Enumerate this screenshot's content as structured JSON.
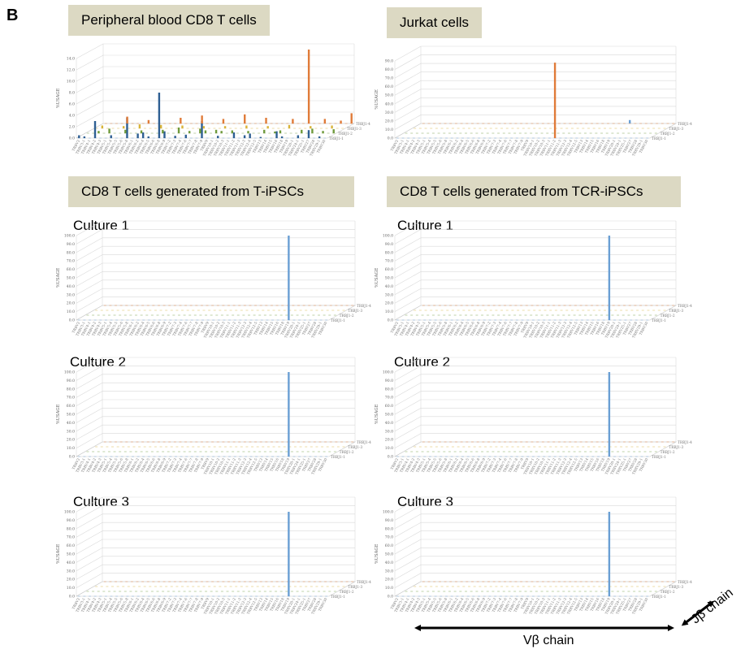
{
  "panel_label": "B",
  "titles": {
    "pb": "Peripheral blood CD8 T cells",
    "jurkat": "Jurkat cells",
    "tipsc": "CD8 T cells generated from T-iPSCs",
    "tcripsc": "CD8 T cells generated from TCR-iPSCs"
  },
  "axes": {
    "vb_label": "Vβ chain",
    "jb_label": "Jβ chain"
  },
  "colors": {
    "title_bg": "#dcd9c3",
    "blue_bar": "#6a9fd4",
    "dark_blue_bar": "#2e5f93",
    "orange_bar": "#e07b39",
    "green_bar": "#6f9a3c",
    "yellow_bar": "#d9b43a",
    "grid": "#d9d9d9"
  },
  "chart_data": [
    {
      "id": "pb",
      "type": "bar",
      "subtitle": "",
      "ylabel": "%USAGE",
      "ylim": [
        0,
        14
      ],
      "yticks": [
        "0.0",
        "2.0",
        "4.0",
        "6.0",
        "8.0",
        "10.0",
        "12.0",
        "14.0"
      ],
      "x_categories": [
        "TRBV2",
        "TRBV3-1",
        "TRBV4-1",
        "TRBV4-2",
        "TRBV4-3",
        "TRBV5-1",
        "TRBV5-4",
        "TRBV5-5",
        "TRBV5-6",
        "TRBV5-8",
        "TRBV6-1",
        "TRBV6-2",
        "TRBV6-4",
        "TRBV6-5",
        "TRBV6-6",
        "TRBV6-8",
        "TRBV6-9",
        "TRBV7-2",
        "TRBV7-3",
        "TRBV7-4",
        "TRBV7-6",
        "TRBV7-7",
        "TRBV7-8",
        "TRBV7-9",
        "TRBV9",
        "TRBV10-1",
        "TRBV10-2",
        "TRBV10-3",
        "TRBV11-1",
        "TRBV11-2",
        "TRBV11-3",
        "TRBV12-3",
        "TRBV12-4",
        "TRBV12-5",
        "TRBV13",
        "TRBV14",
        "TRBV15",
        "TRBV16",
        "TRBV18",
        "TRBV19",
        "TRBV20-1",
        "TRBV24-1",
        "TRBV25-1",
        "TRBV27",
        "TRBV28",
        "TRBV29-1",
        "TRBV30"
      ],
      "z_categories": [
        "TRBJ1-1",
        "TRBJ1-2",
        "TRBJ1-3",
        "TRBJ1-4"
      ],
      "series": [
        {
          "z": 0,
          "color": "#2e5f93",
          "values": [
            [
              0,
              0.5
            ],
            [
              1,
              0.3
            ],
            [
              3,
              3.0
            ],
            [
              6,
              0.5
            ],
            [
              9,
              3.6
            ],
            [
              11,
              0.8
            ],
            [
              12,
              1.0
            ],
            [
              13,
              0.3
            ],
            [
              15,
              8.0
            ],
            [
              16,
              1.2
            ],
            [
              18,
              0.4
            ],
            [
              20,
              0.6
            ],
            [
              23,
              3.0
            ],
            [
              26,
              0.4
            ],
            [
              29,
              1.0
            ],
            [
              31,
              0.5
            ],
            [
              32,
              0.8
            ],
            [
              34,
              0.2
            ],
            [
              37,
              1.2
            ],
            [
              38,
              0.3
            ],
            [
              41,
              0.5
            ],
            [
              43,
              1.4
            ],
            [
              45,
              0.3
            ]
          ]
        },
        {
          "z": 1,
          "color": "#6f9a3c",
          "values": [
            [
              2,
              0.4
            ],
            [
              4,
              0.8
            ],
            [
              7,
              0.6
            ],
            [
              10,
              0.5
            ],
            [
              14,
              0.6
            ],
            [
              17,
              1.0
            ],
            [
              19,
              0.4
            ],
            [
              21,
              0.8
            ],
            [
              22,
              0.5
            ],
            [
              24,
              0.6
            ],
            [
              25,
              0.4
            ],
            [
              27,
              0.5
            ],
            [
              30,
              0.4
            ],
            [
              33,
              0.6
            ],
            [
              35,
              0.3
            ],
            [
              36,
              0.5
            ],
            [
              40,
              0.6
            ],
            [
              42,
              0.8
            ],
            [
              44,
              0.4
            ],
            [
              46,
              0.7
            ]
          ]
        },
        {
          "z": 2,
          "color": "#d9b43a",
          "values": [
            [
              1,
              0.5
            ],
            [
              5,
              0.4
            ],
            [
              8,
              0.7
            ],
            [
              12,
              0.6
            ],
            [
              16,
              0.5
            ],
            [
              20,
              0.4
            ],
            [
              24,
              0.4
            ],
            [
              28,
              0.5
            ],
            [
              32,
              0.4
            ],
            [
              36,
              0.6
            ],
            [
              40,
              0.4
            ],
            [
              44,
              0.5
            ]
          ]
        },
        {
          "z": 3,
          "color": "#e07b39",
          "values": [
            [
              4,
              1.2
            ],
            [
              8,
              0.6
            ],
            [
              14,
              1.0
            ],
            [
              18,
              1.4
            ],
            [
              22,
              0.8
            ],
            [
              26,
              1.6
            ],
            [
              30,
              1.0
            ],
            [
              35,
              0.8
            ],
            [
              38,
              13.0
            ],
            [
              41,
              0.8
            ],
            [
              44,
              0.5
            ],
            [
              46,
              1.8
            ]
          ]
        }
      ]
    },
    {
      "id": "jurkat",
      "type": "bar",
      "subtitle": "",
      "ylabel": "%USAGE",
      "ylim": [
        0,
        90
      ],
      "yticks": [
        "0.0",
        "10.0",
        "20.0",
        "30.0",
        "40.0",
        "50.0",
        "60.0",
        "70.0",
        "80.0",
        "90.0"
      ],
      "x_categories": [
        "TRBV2",
        "TRBV3-1",
        "TRBV4-1",
        "TRBV4-2",
        "TRBV4-3",
        "TRBV5-1",
        "TRBV5-4",
        "TRBV5-5",
        "TRBV5-6",
        "TRBV5-8",
        "TRBV6-1",
        "TRBV6-2",
        "TRBV6-4",
        "TRBV6-5",
        "TRBV6-6",
        "TRBV6-8",
        "TRBV6-9",
        "TRBV7-2",
        "TRBV7-3",
        "TRBV7-4",
        "TRBV7-6",
        "TRBV7-7",
        "TRBV7-8",
        "TRBV7-9",
        "TRBV9",
        "TRBV10-1",
        "TRBV10-2",
        "TRBV10-3",
        "TRBV11-1",
        "TRBV11-2",
        "TRBV11-3",
        "TRBV12-3",
        "TRBV12-4",
        "TRBV12-5",
        "TRBV13",
        "TRBV14",
        "TRBV15",
        "TRBV16",
        "TRBV18",
        "TRBV19",
        "TRBV20-1",
        "TRBV24-1",
        "TRBV25-1",
        "TRBV27",
        "TRBV28",
        "TRBV29-1",
        "TRBV30"
      ],
      "z_categories": [
        "TRBJ1-1",
        "TRBJ1-2",
        "TRBJ1-3",
        "TRBJ1-4"
      ],
      "series": [
        {
          "z": 0,
          "color": "#e07b39",
          "values": [
            [
              29,
              88
            ]
          ]
        },
        {
          "z": 3,
          "color": "#6a9fd4",
          "values": [
            [
              38,
              4
            ]
          ]
        }
      ]
    },
    {
      "id": "t1",
      "type": "bar",
      "subtitle": "Culture 1",
      "ylabel": "%USAGE",
      "ylim": [
        0,
        100
      ],
      "yticks": [
        "0.0",
        "10.0",
        "20.0",
        "30.0",
        "40.0",
        "50.0",
        "60.0",
        "70.0",
        "80.0",
        "90.0",
        "100.0"
      ],
      "x_categories": [
        "TRBV2",
        "TRBV3-1",
        "TRBV4-1",
        "TRBV4-2",
        "TRBV4-3",
        "TRBV5-1",
        "TRBV5-4",
        "TRBV5-5",
        "TRBV5-6",
        "TRBV5-8",
        "TRBV6-1",
        "TRBV6-2",
        "TRBV6-4",
        "TRBV6-5",
        "TRBV6-6",
        "TRBV6-8",
        "TRBV6-9",
        "TRBV7-2",
        "TRBV7-3",
        "TRBV7-4",
        "TRBV7-6",
        "TRBV7-7",
        "TRBV7-8",
        "TRBV7-9",
        "TRBV9",
        "TRBV10-1",
        "TRBV10-2",
        "TRBV10-3",
        "TRBV11-1",
        "TRBV11-2",
        "TRBV11-3",
        "TRBV12-3",
        "TRBV12-4",
        "TRBV12-5",
        "TRBV13",
        "TRBV14",
        "TRBV15",
        "TRBV16",
        "TRBV18",
        "TRBV19",
        "TRBV20-1",
        "TRBV24-1",
        "TRBV25-1",
        "TRBV27",
        "TRBV28",
        "TRBV29-1",
        "TRBV30"
      ],
      "z_categories": [
        "TRBJ1-1",
        "TRBJ1-2",
        "TRBJ1-3",
        "TRBJ1-4"
      ],
      "series": [
        {
          "z": 0,
          "color": "#6a9fd4",
          "values": [
            [
              39,
              100
            ]
          ]
        }
      ]
    },
    {
      "id": "r1",
      "type": "bar",
      "subtitle": "Culture 1",
      "ylabel": "%USAGE",
      "ylim": [
        0,
        100
      ],
      "yticks": [
        "0.0",
        "10.0",
        "20.0",
        "30.0",
        "40.0",
        "50.0",
        "60.0",
        "70.0",
        "80.0",
        "90.0",
        "100.0"
      ],
      "x_categories": [
        "TRBV2",
        "TRBV3-1",
        "TRBV4-1",
        "TRBV4-2",
        "TRBV4-3",
        "TRBV5-1",
        "TRBV5-4",
        "TRBV5-5",
        "TRBV5-6",
        "TRBV5-8",
        "TRBV6-1",
        "TRBV6-2",
        "TRBV6-4",
        "TRBV6-5",
        "TRBV6-6",
        "TRBV6-8",
        "TRBV6-9",
        "TRBV7-2",
        "TRBV7-3",
        "TRBV7-4",
        "TRBV7-6",
        "TRBV7-7",
        "TRBV7-8",
        "TRBV7-9",
        "TRBV9",
        "TRBV10-1",
        "TRBV10-2",
        "TRBV10-3",
        "TRBV11-1",
        "TRBV11-2",
        "TRBV11-3",
        "TRBV12-3",
        "TRBV12-4",
        "TRBV12-5",
        "TRBV13",
        "TRBV14",
        "TRBV15",
        "TRBV16",
        "TRBV18",
        "TRBV19",
        "TRBV20-1",
        "TRBV24-1",
        "TRBV25-1",
        "TRBV27",
        "TRBV28",
        "TRBV29-1",
        "TRBV30"
      ],
      "z_categories": [
        "TRBJ1-1",
        "TRBJ1-2",
        "TRBJ1-3",
        "TRBJ1-4"
      ],
      "series": [
        {
          "z": 0,
          "color": "#6a9fd4",
          "values": [
            [
              39,
              100
            ]
          ]
        }
      ]
    },
    {
      "id": "t2",
      "type": "bar",
      "subtitle": "Culture 2",
      "ylabel": "%USAGE",
      "ylim": [
        0,
        100
      ],
      "yticks": [
        "0.0",
        "10.0",
        "20.0",
        "30.0",
        "40.0",
        "50.0",
        "60.0",
        "70.0",
        "80.0",
        "90.0",
        "100.0"
      ],
      "x_categories": [
        "TRBV2",
        "TRBV3-1",
        "TRBV4-1",
        "TRBV4-2",
        "TRBV4-3",
        "TRBV5-1",
        "TRBV5-4",
        "TRBV5-5",
        "TRBV5-6",
        "TRBV5-8",
        "TRBV6-1",
        "TRBV6-2",
        "TRBV6-4",
        "TRBV6-5",
        "TRBV6-6",
        "TRBV6-8",
        "TRBV6-9",
        "TRBV7-2",
        "TRBV7-3",
        "TRBV7-4",
        "TRBV7-6",
        "TRBV7-7",
        "TRBV7-8",
        "TRBV7-9",
        "TRBV9",
        "TRBV10-1",
        "TRBV10-2",
        "TRBV10-3",
        "TRBV11-1",
        "TRBV11-2",
        "TRBV11-3",
        "TRBV12-3",
        "TRBV12-4",
        "TRBV12-5",
        "TRBV13",
        "TRBV14",
        "TRBV15",
        "TRBV16",
        "TRBV18",
        "TRBV19",
        "TRBV20-1",
        "TRBV24-1",
        "TRBV25-1",
        "TRBV27",
        "TRBV28",
        "TRBV29-1",
        "TRBV30"
      ],
      "z_categories": [
        "TRBJ1-1",
        "TRBJ1-2",
        "TRBJ1-3",
        "TRBJ1-4"
      ],
      "series": [
        {
          "z": 0,
          "color": "#6a9fd4",
          "values": [
            [
              39,
              100
            ]
          ]
        }
      ]
    },
    {
      "id": "r2",
      "type": "bar",
      "subtitle": "Culture 2",
      "ylabel": "%USAGE",
      "ylim": [
        0,
        100
      ],
      "yticks": [
        "0.0",
        "10.0",
        "20.0",
        "30.0",
        "40.0",
        "50.0",
        "60.0",
        "70.0",
        "80.0",
        "90.0",
        "100.0"
      ],
      "x_categories": [
        "TRBV2",
        "TRBV3-1",
        "TRBV4-1",
        "TRBV4-2",
        "TRBV4-3",
        "TRBV5-1",
        "TRBV5-4",
        "TRBV5-5",
        "TRBV5-6",
        "TRBV5-8",
        "TRBV6-1",
        "TRBV6-2",
        "TRBV6-4",
        "TRBV6-5",
        "TRBV6-6",
        "TRBV6-8",
        "TRBV6-9",
        "TRBV7-2",
        "TRBV7-3",
        "TRBV7-4",
        "TRBV7-6",
        "TRBV7-7",
        "TRBV7-8",
        "TRBV7-9",
        "TRBV9",
        "TRBV10-1",
        "TRBV10-2",
        "TRBV10-3",
        "TRBV11-1",
        "TRBV11-2",
        "TRBV11-3",
        "TRBV12-3",
        "TRBV12-4",
        "TRBV12-5",
        "TRBV13",
        "TRBV14",
        "TRBV15",
        "TRBV16",
        "TRBV18",
        "TRBV19",
        "TRBV20-1",
        "TRBV24-1",
        "TRBV25-1",
        "TRBV27",
        "TRBV28",
        "TRBV29-1",
        "TRBV30"
      ],
      "z_categories": [
        "TRBJ1-1",
        "TRBJ1-2",
        "TRBJ1-3",
        "TRBJ1-4"
      ],
      "series": [
        {
          "z": 0,
          "color": "#6a9fd4",
          "values": [
            [
              39,
              100
            ]
          ]
        }
      ]
    },
    {
      "id": "t3",
      "type": "bar",
      "subtitle": "Culture 3",
      "ylabel": "%USAGE",
      "ylim": [
        0,
        100
      ],
      "yticks": [
        "0.0",
        "10.0",
        "20.0",
        "30.0",
        "40.0",
        "50.0",
        "60.0",
        "70.0",
        "80.0",
        "90.0",
        "100.0"
      ],
      "x_categories": [
        "TRBV2",
        "TRBV3-1",
        "TRBV4-1",
        "TRBV4-2",
        "TRBV4-3",
        "TRBV5-1",
        "TRBV5-4",
        "TRBV5-5",
        "TRBV5-6",
        "TRBV5-8",
        "TRBV6-1",
        "TRBV6-2",
        "TRBV6-4",
        "TRBV6-5",
        "TRBV6-6",
        "TRBV6-8",
        "TRBV6-9",
        "TRBV7-2",
        "TRBV7-3",
        "TRBV7-4",
        "TRBV7-6",
        "TRBV7-7",
        "TRBV7-8",
        "TRBV7-9",
        "TRBV9",
        "TRBV10-1",
        "TRBV10-2",
        "TRBV10-3",
        "TRBV11-1",
        "TRBV11-2",
        "TRBV11-3",
        "TRBV12-3",
        "TRBV12-4",
        "TRBV12-5",
        "TRBV13",
        "TRBV14",
        "TRBV15",
        "TRBV16",
        "TRBV18",
        "TRBV19",
        "TRBV20-1",
        "TRBV24-1",
        "TRBV25-1",
        "TRBV27",
        "TRBV28",
        "TRBV29-1",
        "TRBV30"
      ],
      "z_categories": [
        "TRBJ1-1",
        "TRBJ1-2",
        "TRBJ1-3",
        "TRBJ1-4"
      ],
      "series": [
        {
          "z": 0,
          "color": "#6a9fd4",
          "values": [
            [
              39,
              100
            ]
          ]
        }
      ]
    },
    {
      "id": "r3",
      "type": "bar",
      "subtitle": "Culture 3",
      "ylabel": "%USAGE",
      "ylim": [
        0,
        100
      ],
      "yticks": [
        "0.0",
        "10.0",
        "20.0",
        "30.0",
        "40.0",
        "50.0",
        "60.0",
        "70.0",
        "80.0",
        "90.0",
        "100.0"
      ],
      "x_categories": [
        "TRBV2",
        "TRBV3-1",
        "TRBV4-1",
        "TRBV4-2",
        "TRBV4-3",
        "TRBV5-1",
        "TRBV5-4",
        "TRBV5-5",
        "TRBV5-6",
        "TRBV5-8",
        "TRBV6-1",
        "TRBV6-2",
        "TRBV6-4",
        "TRBV6-5",
        "TRBV6-6",
        "TRBV6-8",
        "TRBV6-9",
        "TRBV7-2",
        "TRBV7-3",
        "TRBV7-4",
        "TRBV7-6",
        "TRBV7-7",
        "TRBV7-8",
        "TRBV7-9",
        "TRBV9",
        "TRBV10-1",
        "TRBV10-2",
        "TRBV10-3",
        "TRBV11-1",
        "TRBV11-2",
        "TRBV11-3",
        "TRBV12-3",
        "TRBV12-4",
        "TRBV12-5",
        "TRBV13",
        "TRBV14",
        "TRBV15",
        "TRBV16",
        "TRBV18",
        "TRBV19",
        "TRBV20-1",
        "TRBV24-1",
        "TRBV25-1",
        "TRBV27",
        "TRBV28",
        "TRBV29-1",
        "TRBV30"
      ],
      "z_categories": [
        "TRBJ1-1",
        "TRBJ1-2",
        "TRBJ1-3",
        "TRBJ1-4"
      ],
      "series": [
        {
          "z": 0,
          "color": "#6a9fd4",
          "values": [
            [
              39,
              100
            ]
          ]
        }
      ]
    }
  ]
}
